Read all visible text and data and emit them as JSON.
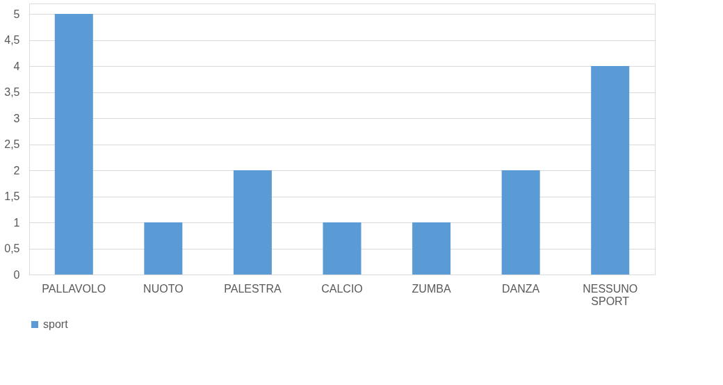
{
  "chart_data": {
    "type": "bar",
    "categories": [
      "PALLAVOLO",
      "NUOTO",
      "PALESTRA",
      "CALCIO",
      "ZUMBA",
      "DANZA",
      "NESSUNO SPORT"
    ],
    "series": [
      {
        "name": "sport",
        "color": "#5b9bd5",
        "values": [
          5,
          1,
          2,
          1,
          1,
          2,
          4
        ]
      }
    ],
    "ylim": [
      0,
      5.2
    ],
    "yticks": [
      0,
      {
        "value": 0.5,
        "label": "0,5"
      },
      1,
      {
        "value": 1.5,
        "label": "1,5"
      },
      2,
      {
        "value": 2.5,
        "label": "2,5"
      },
      3,
      {
        "value": 3.5,
        "label": "3,5"
      },
      4,
      {
        "value": 4.5,
        "label": "4,5"
      },
      5
    ],
    "grid": "y",
    "legend": "bottom"
  }
}
